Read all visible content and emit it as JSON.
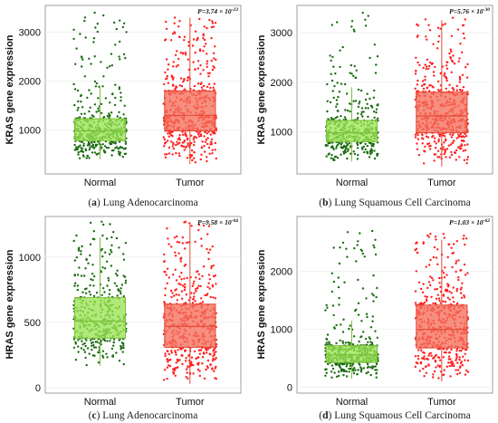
{
  "colors": {
    "normal_point": "#1a6b10",
    "normal_box": "#9be455",
    "normal_box_edge": "#7dbe3a",
    "tumor_point": "#ff1f1f",
    "tumor_box": "#f4705c",
    "tumor_box_edge": "#e34a36"
  },
  "chart_data": [
    {
      "type": "box-strip",
      "panel_letter": "a",
      "caption": "Lung Adenocarcinoma",
      "ylabel": "KRAS gene expression",
      "p_value_text": "P=3.74 × 10",
      "p_value_exp": "-23",
      "categories": [
        "Normal",
        "Tumor"
      ],
      "yticks": [
        1000,
        2000,
        3000
      ],
      "ylim": [
        100,
        3550
      ],
      "series": [
        {
          "name": "Normal",
          "n": 420,
          "min": 400,
          "max": 3400,
          "q1": 780,
          "median": 980,
          "q3": 1230,
          "whisker_low": 400,
          "whisker_high": 1900,
          "tail": 2.2
        },
        {
          "name": "Tumor",
          "n": 520,
          "min": 300,
          "max": 3300,
          "q1": 980,
          "median": 1300,
          "q3": 1800,
          "whisker_low": 300,
          "whisker_high": 3300,
          "tail": 1.6
        }
      ]
    },
    {
      "type": "box-strip",
      "panel_letter": "b",
      "caption": "Lung Squamous Cell Carcinoma",
      "ylabel": "KRAS gene expression",
      "p_value_text": "P=5.76 × 10",
      "p_value_exp": "-30",
      "categories": [
        "Normal",
        "Tumor"
      ],
      "yticks": [
        1000,
        2000,
        3000
      ],
      "ylim": [
        150,
        3550
      ],
      "series": [
        {
          "name": "Normal",
          "n": 400,
          "min": 400,
          "max": 3400,
          "q1": 800,
          "median": 980,
          "q3": 1230,
          "whisker_low": 400,
          "whisker_high": 1900,
          "tail": 2.2
        },
        {
          "name": "Tumor",
          "n": 480,
          "min": 300,
          "max": 3300,
          "q1": 980,
          "median": 1320,
          "q3": 1800,
          "whisker_low": 300,
          "whisker_high": 3250,
          "tail": 1.6
        }
      ]
    },
    {
      "type": "box-strip",
      "panel_letter": "c",
      "caption": "Lung Adenocarcinoma",
      "ylabel": "HRAS gene expression",
      "p_value_text": "P=9.58 × 10",
      "p_value_exp": "-04",
      "categories": [
        "Normal",
        "Tumor"
      ],
      "yticks": [
        0,
        500,
        1000
      ],
      "ylim": [
        -40,
        1310
      ],
      "series": [
        {
          "name": "Normal",
          "n": 380,
          "min": 170,
          "max": 1270,
          "q1": 380,
          "median": 510,
          "q3": 690,
          "whisker_low": 170,
          "whisker_high": 1150,
          "tail": 1.4
        },
        {
          "name": "Tumor",
          "n": 480,
          "min": 30,
          "max": 1270,
          "q1": 310,
          "median": 470,
          "q3": 640,
          "whisker_low": 30,
          "whisker_high": 1250,
          "tail": 1.3
        }
      ]
    },
    {
      "type": "box-strip",
      "panel_letter": "d",
      "caption": "Lung Squamous Cell Carcinoma",
      "ylabel": "HRAS gene expression",
      "p_value_text": "P=1.03 × 10",
      "p_value_exp": "-62",
      "categories": [
        "Normal",
        "Tumor"
      ],
      "yticks": [
        0,
        1000,
        2000
      ],
      "ylim": [
        -100,
        2950
      ],
      "series": [
        {
          "name": "Normal",
          "n": 420,
          "min": 150,
          "max": 2700,
          "q1": 430,
          "median": 560,
          "q3": 720,
          "whisker_low": 150,
          "whisker_high": 1150,
          "tail": 2.6
        },
        {
          "name": "Tumor",
          "n": 480,
          "min": 100,
          "max": 2650,
          "q1": 680,
          "median": 1000,
          "q3": 1420,
          "whisker_low": 100,
          "whisker_high": 2550,
          "tail": 1.6
        }
      ]
    }
  ]
}
